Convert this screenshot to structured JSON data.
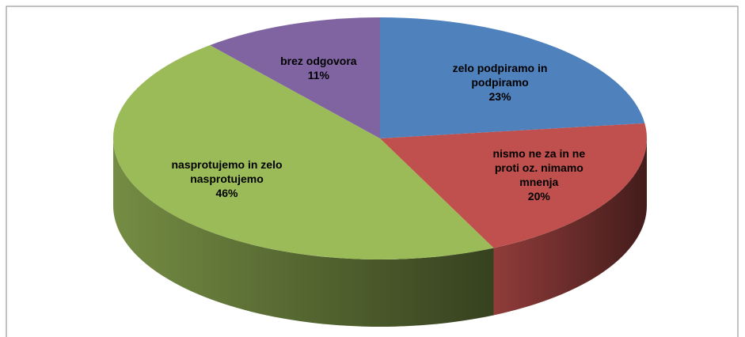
{
  "chart_data": {
    "type": "pie3d",
    "categories": [
      "zelo podpiramo in podpiramo",
      "nismo ne za in ne proti oz. nimamo mnenja",
      "nasprotujemo in zelo nasprotujemo",
      "brez odgovora"
    ],
    "values": [
      23,
      20,
      46,
      11
    ],
    "value_labels": [
      "23%",
      "20%",
      "46%",
      "11%"
    ],
    "colors": [
      "#4f81bd",
      "#c0504d",
      "#9bbb59",
      "#8064a2"
    ]
  }
}
